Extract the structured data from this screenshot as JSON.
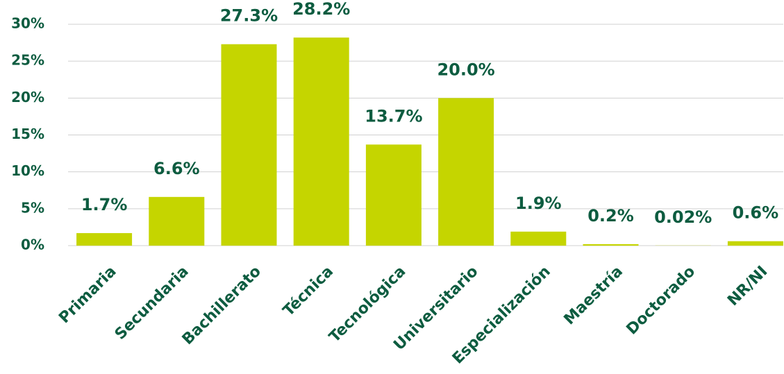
{
  "chart_data": {
    "type": "bar",
    "categories": [
      "Primaria",
      "Secundaria",
      "Bachillerato",
      "Técnica",
      "Tecnológica",
      "Universitario",
      "Especialización",
      "Maestría",
      "Doctorado",
      "NR/NI"
    ],
    "values": [
      1.7,
      6.6,
      27.3,
      28.2,
      13.7,
      20.0,
      1.9,
      0.2,
      0.02,
      0.6
    ],
    "value_labels": [
      "1.7%",
      "6.6%",
      "27.3%",
      "28.2%",
      "13.7%",
      "20.0%",
      "1.9%",
      "0.2%",
      "0.02%",
      "0.6%"
    ],
    "color": "#c5d500",
    "ylim": [
      0,
      30
    ],
    "yticks": [
      {
        "value": 0,
        "label": "0%"
      },
      {
        "value": 5,
        "label": "5%"
      },
      {
        "value": 10,
        "label": "10%"
      },
      {
        "value": 15,
        "label": "15%"
      },
      {
        "value": 20,
        "label": "20%"
      },
      {
        "value": 25,
        "label": "25%"
      },
      {
        "value": 30,
        "label": "30%"
      }
    ],
    "grid": true
  }
}
